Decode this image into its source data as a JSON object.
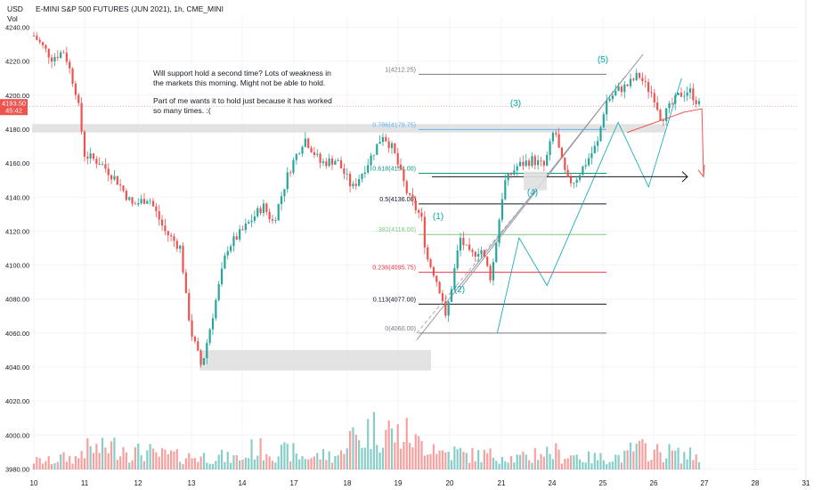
{
  "header": {
    "currency": "USD",
    "title": "E-MINI S&P 500 FUTURES (JUN 2021), 1h, CME_MINI",
    "volume_label": "Vol"
  },
  "annotation": {
    "paragraph1": "Will support hold a second time? Lots of weakness in the markets this morning. Might not be able to hold.",
    "paragraph2": "Part of me wants it to hold just because it has worked so many times. :("
  },
  "price_badge": {
    "price": "4193.50",
    "countdown": "45:42"
  },
  "colors": {
    "up": "#26a69a",
    "down": "#ef5350",
    "badge": "#ef5350",
    "wave": "#00a6b5",
    "zone": "#e0e0e0"
  },
  "chart_data": {
    "type": "candlestick",
    "price_axis": {
      "ylim": [
        3975,
        4242
      ],
      "ticks": [
        4240,
        4220,
        4200,
        4180,
        4160,
        4140,
        4120,
        4100,
        4080,
        4060,
        4040,
        4020,
        4000,
        3980
      ]
    },
    "x_tick_labels": [
      "10",
      "11",
      "12",
      "13",
      "14",
      "17",
      "18",
      "19",
      "20",
      "21",
      "24",
      "25",
      "26",
      "27",
      "28",
      "31"
    ],
    "price_path": [
      {
        "d": 10.0,
        "p": 4235
      },
      {
        "d": 10.35,
        "p": 4222
      },
      {
        "d": 10.6,
        "p": 4226
      },
      {
        "d": 10.85,
        "p": 4200
      },
      {
        "d": 11.0,
        "p": 4165
      },
      {
        "d": 11.3,
        "p": 4160
      },
      {
        "d": 11.6,
        "p": 4150
      },
      {
        "d": 11.9,
        "p": 4135
      },
      {
        "d": 12.2,
        "p": 4140
      },
      {
        "d": 12.5,
        "p": 4120
      },
      {
        "d": 12.8,
        "p": 4110
      },
      {
        "d": 12.9,
        "p": 4080
      },
      {
        "d": 13.0,
        "p": 4060
      },
      {
        "d": 13.2,
        "p": 4040
      },
      {
        "d": 13.4,
        "p": 4068
      },
      {
        "d": 13.7,
        "p": 4110
      },
      {
        "d": 14.0,
        "p": 4120
      },
      {
        "d": 14.4,
        "p": 4135
      },
      {
        "d": 14.6,
        "p": 4125
      },
      {
        "d": 14.9,
        "p": 4155
      },
      {
        "d": 15.2,
        "p": 4175
      },
      {
        "d": 15.5,
        "p": 4160
      },
      {
        "d": 15.8,
        "p": 4162
      },
      {
        "d": 16.1,
        "p": 4145
      },
      {
        "d": 16.4,
        "p": 4160
      },
      {
        "d": 16.7,
        "p": 4177
      },
      {
        "d": 16.9,
        "p": 4168
      },
      {
        "d": 17.2,
        "p": 4140
      },
      {
        "d": 17.45,
        "p": 4128
      },
      {
        "d": 17.55,
        "p": 4105
      },
      {
        "d": 17.7,
        "p": 4095
      },
      {
        "d": 17.85,
        "p": 4082
      },
      {
        "d": 17.92,
        "p": 4068
      },
      {
        "d": 18.05,
        "p": 4090
      },
      {
        "d": 18.2,
        "p": 4116
      },
      {
        "d": 18.4,
        "p": 4105
      },
      {
        "d": 18.6,
        "p": 4110
      },
      {
        "d": 18.8,
        "p": 4092
      },
      {
        "d": 18.9,
        "p": 4114
      },
      {
        "d": 19.05,
        "p": 4148
      },
      {
        "d": 19.3,
        "p": 4158
      },
      {
        "d": 19.6,
        "p": 4162
      },
      {
        "d": 19.85,
        "p": 4158
      },
      {
        "d": 20.05,
        "p": 4181
      },
      {
        "d": 20.15,
        "p": 4165
      },
      {
        "d": 20.3,
        "p": 4149
      },
      {
        "d": 20.45,
        "p": 4150
      },
      {
        "d": 20.7,
        "p": 4162
      },
      {
        "d": 20.9,
        "p": 4172
      },
      {
        "d": 21.05,
        "p": 4196
      },
      {
        "d": 21.3,
        "p": 4203
      },
      {
        "d": 21.5,
        "p": 4206
      },
      {
        "d": 21.7,
        "p": 4212
      },
      {
        "d": 21.85,
        "p": 4205
      },
      {
        "d": 22.0,
        "p": 4200
      },
      {
        "d": 22.15,
        "p": 4186
      },
      {
        "d": 22.3,
        "p": 4192
      },
      {
        "d": 22.5,
        "p": 4200
      },
      {
        "d": 22.7,
        "p": 4203
      },
      {
        "d": 22.9,
        "p": 4194
      }
    ],
    "volume_profile": [
      6,
      8,
      14,
      16,
      12,
      10,
      9,
      9,
      8,
      14,
      12,
      9,
      10,
      22,
      28,
      24,
      18,
      12,
      10,
      10,
      8,
      12,
      10,
      8,
      9,
      14,
      12,
      10,
      9,
      8,
      9,
      16,
      22,
      16,
      12,
      10,
      12,
      10,
      9,
      16,
      14,
      10,
      10,
      9,
      8,
      8,
      10,
      14,
      18,
      12,
      10,
      8,
      6,
      4
    ],
    "fibonacci": [
      {
        "ratio": "1",
        "price": 4212.25,
        "label": "1(4212.25)",
        "color": "#787b86"
      },
      {
        "ratio": "0.786",
        "price": 4179.75,
        "label": "0.786(4179.75)",
        "color": "#64b5f6"
      },
      {
        "ratio": "0.618",
        "price": 4154.0,
        "label": "0.618(4154.00)",
        "color": "#089981"
      },
      {
        "ratio": "0.5",
        "price": 4136.0,
        "label": "0.5(4136.00)",
        "color": "#131722"
      },
      {
        "ratio": "0.382",
        "price": 4118.0,
        "label": ".382(4118.00)",
        "color": "#81c784"
      },
      {
        "ratio": "0.236",
        "price": 4095.75,
        "label": "0.236(4095.75)",
        "color": "#f23645"
      },
      {
        "ratio": "0.113",
        "price": 4077.0,
        "label": "0.113(4077.00)",
        "color": "#131722"
      },
      {
        "ratio": "0",
        "price": 4060.0,
        "label": "0(4060.00)",
        "color": "#787b86"
      }
    ],
    "wave_labels": [
      "(1)",
      "(2)",
      "(3)",
      "(4)",
      "(5)"
    ],
    "support_zones": [
      {
        "low": 4178,
        "high": 4183
      },
      {
        "low": 4038,
        "high": 4050
      }
    ]
  }
}
